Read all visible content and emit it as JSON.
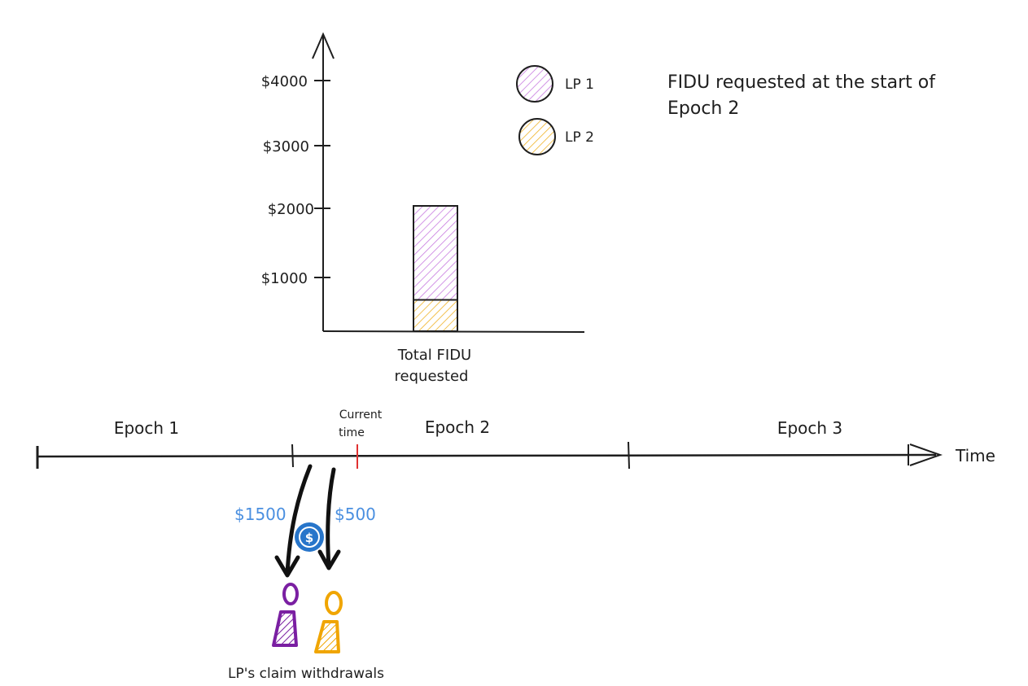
{
  "title_lines": [
    "FIDU requested at the start of",
    "Epoch 2"
  ],
  "chart_data": {
    "type": "bar",
    "categories": [
      "Total FIDU requested"
    ],
    "category_label_lines": [
      "Total FIDU",
      "requested"
    ],
    "stacked": true,
    "series": [
      {
        "name": "LP 2",
        "values": [
          500
        ],
        "color": "#f0b429"
      },
      {
        "name": "LP 1",
        "values": [
          1500
        ],
        "color": "#c77be0"
      }
    ],
    "yticks": [
      "$1000",
      "$2000",
      "$3000",
      "$4000"
    ],
    "ytick_values": [
      1000,
      2000,
      3000,
      4000
    ],
    "ylim": [
      0,
      4000
    ],
    "legend_placement": "top-right",
    "legend": [
      {
        "name": "LP 1",
        "color": "#c77be0"
      },
      {
        "name": "LP 2",
        "color": "#f0b429"
      }
    ]
  },
  "timeline": {
    "epochs": [
      "Epoch 1",
      "Epoch 2",
      "Epoch 3"
    ],
    "axis_label": "Time",
    "current_time_lines": [
      "Current",
      "time"
    ]
  },
  "withdrawals": {
    "lp1_amount": "$1500",
    "lp2_amount": "$500",
    "caption": "LP's claim withdrawals",
    "lp1_color": "#7a1fa2",
    "lp2_color": "#f0a500",
    "coin_color": "#2775ca"
  }
}
